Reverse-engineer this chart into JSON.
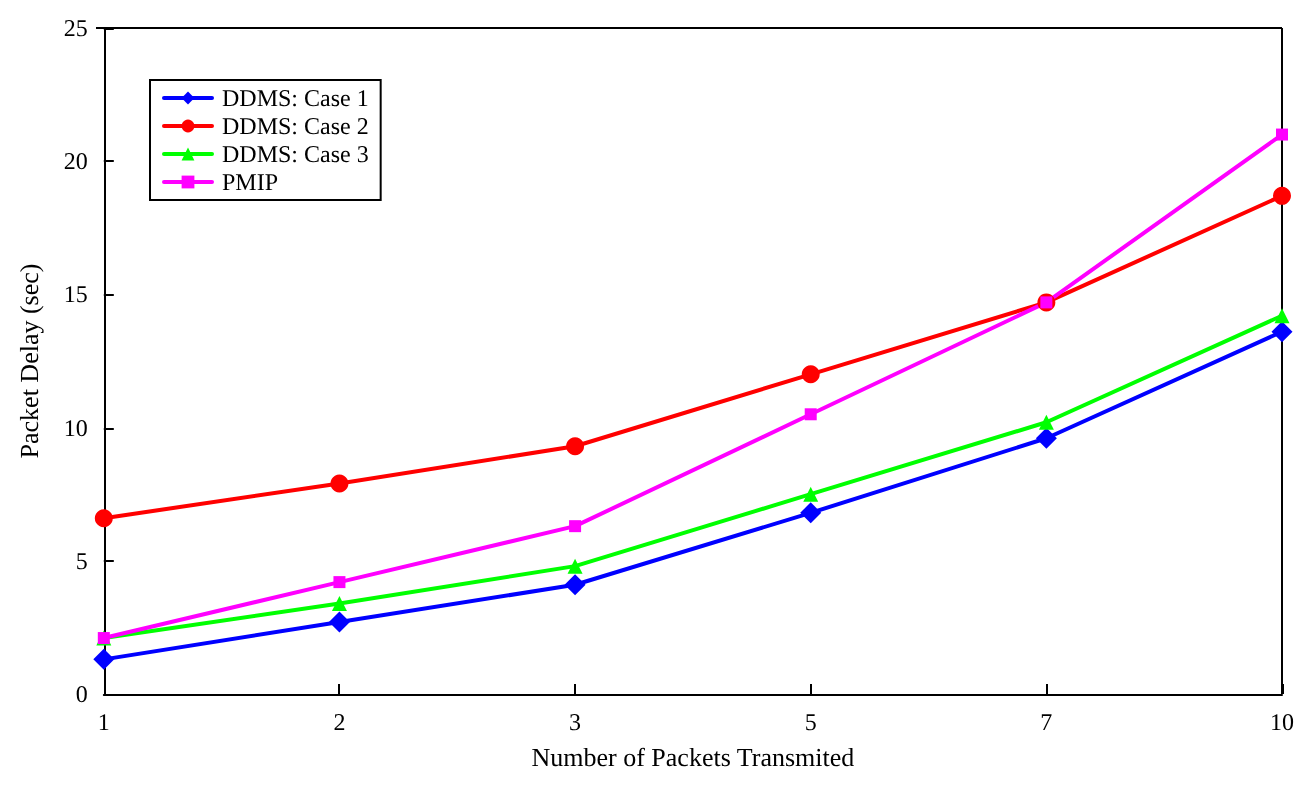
{
  "chart_data": {
    "type": "line",
    "xlabel": "Number of Packets Transmited",
    "ylabel": "Packet Delay (sec)",
    "categories": [
      "1",
      "2",
      "3",
      "5",
      "7",
      "10"
    ],
    "series": [
      {
        "name": "DDMS: Case 1",
        "color": "#0000ff",
        "marker": "diamond",
        "values": [
          1.3,
          2.7,
          4.1,
          6.8,
          9.6,
          13.6
        ]
      },
      {
        "name": "DDMS: Case 2",
        "color": "#ff0000",
        "marker": "circle",
        "values": [
          6.6,
          7.9,
          9.3,
          12.0,
          14.7,
          18.7
        ]
      },
      {
        "name": "DDMS: Case 3",
        "color": "#00ff00",
        "marker": "triangle",
        "values": [
          2.1,
          3.4,
          4.8,
          7.5,
          10.2,
          14.2
        ]
      },
      {
        "name": "PMIP",
        "color": "#ff00ff",
        "marker": "square",
        "values": [
          2.1,
          4.2,
          6.3,
          10.5,
          14.7,
          21.0
        ]
      }
    ],
    "ylim": [
      0,
      25
    ],
    "yticks": [
      0,
      5,
      10,
      15,
      20,
      25
    ],
    "grid": false,
    "legend": "top left",
    "line_style": "solid"
  }
}
